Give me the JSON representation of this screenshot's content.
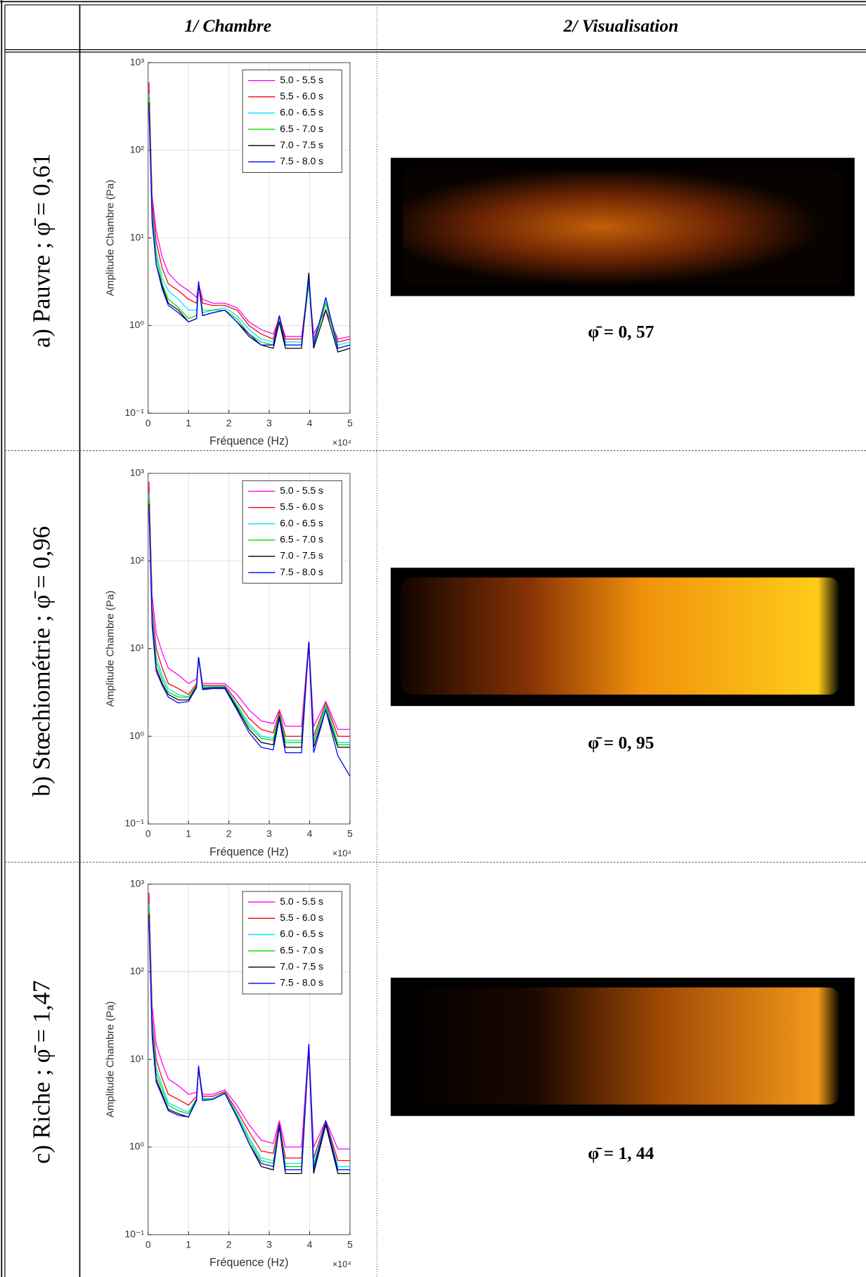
{
  "table": {
    "headers": [
      "1/ Chambre",
      "2/ Visualisation"
    ],
    "rows": [
      {
        "label": "a) Pauvre ; φ̄ = 0,61",
        "caption": "φ̄ = 0, 57",
        "chart": {
          "type": "line",
          "ylabel": "Amplitude Chambre (Pa)",
          "xlabel": "Fréquence (Hz)",
          "x_multiplier": "×10⁴",
          "xlim": [
            0,
            5
          ],
          "ylim": [
            0.1,
            1000
          ],
          "log_y": true,
          "grid": true,
          "legend": "upper right",
          "xticks": [
            0,
            1,
            2,
            3,
            4,
            5
          ],
          "yticks": [
            {
              "value": 0.1,
              "label": "10⁻¹"
            },
            {
              "value": 1,
              "label": "10⁰"
            },
            {
              "value": 10,
              "label": "10¹"
            },
            {
              "value": 100,
              "label": "10²"
            },
            {
              "value": 1000,
              "label": "10³"
            }
          ],
          "x": [
            0.02,
            0.1,
            0.2,
            0.35,
            0.5,
            0.75,
            1.0,
            1.2,
            1.25,
            1.35,
            1.6,
            1.9,
            2.2,
            2.5,
            2.8,
            3.1,
            3.25,
            3.4,
            3.8,
            3.98,
            4.1,
            4.4,
            4.7,
            5.0
          ],
          "series": [
            {
              "name": "5.0 - 5.5 s",
              "color": "#ff00ff",
              "values": [
                500,
                30,
                12,
                6,
                4,
                3,
                2.5,
                2.1,
                3,
                2,
                1.8,
                1.8,
                1.6,
                1.1,
                0.9,
                0.8,
                1.2,
                0.75,
                0.75,
                3,
                0.8,
                1.5,
                0.7,
                0.75
              ]
            },
            {
              "name": "5.5 - 6.0 s",
              "color": "#ff0000",
              "values": [
                600,
                25,
                9,
                4.5,
                3,
                2.5,
                2,
                1.8,
                3,
                1.8,
                1.7,
                1.7,
                1.5,
                1.0,
                0.8,
                0.7,
                1.3,
                0.7,
                0.7,
                3.5,
                0.7,
                1.8,
                0.65,
                0.7
              ]
            },
            {
              "name": "6.0 - 6.5 s",
              "color": "#00e5ff",
              "values": [
                450,
                20,
                7,
                3.5,
                2.5,
                2,
                1.5,
                1.5,
                3,
                1.5,
                1.5,
                1.6,
                1.3,
                0.9,
                0.7,
                0.65,
                1.2,
                0.65,
                0.65,
                3,
                0.65,
                2,
                0.6,
                0.65
              ]
            },
            {
              "name": "6.5 - 7.0 s",
              "color": "#00dd00",
              "values": [
                400,
                18,
                6,
                3,
                2,
                1.6,
                1.2,
                1.3,
                3,
                1.4,
                1.5,
                1.5,
                1.2,
                0.8,
                0.65,
                0.6,
                1.1,
                0.6,
                0.6,
                3,
                0.6,
                1.8,
                0.55,
                0.6
              ]
            },
            {
              "name": "7.0 - 7.5 s",
              "color": "#000000",
              "values": [
                350,
                16,
                5,
                2.8,
                1.8,
                1.5,
                1.1,
                1.2,
                3,
                1.3,
                1.4,
                1.5,
                1.1,
                0.75,
                0.6,
                0.55,
                1.1,
                0.55,
                0.55,
                4,
                0.55,
                1.5,
                0.5,
                0.55
              ]
            },
            {
              "name": "7.5 - 8.0 s",
              "color": "#0000ff",
              "values": [
                300,
                15,
                5,
                2.6,
                1.7,
                1.4,
                1.1,
                1.2,
                3.2,
                1.3,
                1.4,
                1.5,
                1.1,
                0.8,
                0.6,
                0.6,
                1.3,
                0.6,
                0.6,
                3.5,
                0.6,
                2.1,
                0.55,
                0.6
              ]
            }
          ]
        }
      },
      {
        "label": "b) Stœchiométrie ; φ̄ = 0,96",
        "caption": "φ̄ = 0, 95",
        "chart": {
          "type": "line",
          "ylabel": "Amplitude Chambre (Pa)",
          "xlabel": "Fréquence (Hz)",
          "x_multiplier": "×10⁴",
          "xlim": [
            0,
            5
          ],
          "ylim": [
            0.1,
            1000
          ],
          "log_y": true,
          "grid": true,
          "legend": "upper right",
          "xticks": [
            0,
            1,
            2,
            3,
            4,
            5
          ],
          "yticks": [
            {
              "value": 0.1,
              "label": "10⁻¹"
            },
            {
              "value": 1,
              "label": "10⁰"
            },
            {
              "value": 10,
              "label": "10¹"
            },
            {
              "value": 100,
              "label": "10²"
            },
            {
              "value": 1000,
              "label": "10³"
            }
          ],
          "x": [
            0.02,
            0.1,
            0.2,
            0.35,
            0.5,
            0.75,
            1.0,
            1.2,
            1.25,
            1.35,
            1.6,
            1.9,
            2.2,
            2.5,
            2.8,
            3.1,
            3.25,
            3.4,
            3.8,
            3.98,
            4.1,
            4.4,
            4.7,
            5.0
          ],
          "series": [
            {
              "name": "5.0 - 5.5 s",
              "color": "#ff00ff",
              "values": [
                700,
                40,
                15,
                9,
                6,
                5,
                4,
                4.5,
                8,
                4,
                4,
                4,
                3,
                2,
                1.5,
                1.4,
                2,
                1.3,
                1.3,
                12,
                1.3,
                2.5,
                1.2,
                1.2
              ]
            },
            {
              "name": "5.5 - 6.0 s",
              "color": "#ff0000",
              "values": [
                800,
                30,
                10,
                6,
                4,
                3.5,
                3,
                4,
                8,
                3.8,
                3.8,
                3.8,
                2.5,
                1.6,
                1.2,
                1.1,
                1.9,
                1,
                1,
                12,
                1,
                2.4,
                1,
                1
              ]
            },
            {
              "name": "6.0 - 6.5 s",
              "color": "#00e5ff",
              "values": [
                600,
                25,
                8,
                5,
                3.5,
                3,
                2.8,
                3.8,
                8,
                3.7,
                3.7,
                3.7,
                2.3,
                1.4,
                1,
                0.95,
                1.8,
                0.9,
                0.9,
                11,
                0.9,
                2.3,
                0.85,
                0.85
              ]
            },
            {
              "name": "6.5 - 7.0 s",
              "color": "#00dd00",
              "values": [
                500,
                22,
                7,
                4.5,
                3.2,
                2.8,
                2.8,
                3.8,
                8,
                3.6,
                3.6,
                3.6,
                2.2,
                1.3,
                0.95,
                0.9,
                1.8,
                0.85,
                0.85,
                11,
                0.85,
                2.2,
                0.8,
                0.8
              ]
            },
            {
              "name": "7.0 - 7.5 s",
              "color": "#000000",
              "values": [
                450,
                20,
                6,
                4,
                3,
                2.6,
                2.6,
                3.7,
                8,
                3.5,
                3.6,
                3.6,
                2.1,
                1.2,
                0.85,
                0.8,
                1.7,
                0.75,
                0.75,
                12,
                0.75,
                2,
                0.75,
                0.75
              ]
            },
            {
              "name": "7.5 - 8.0 s",
              "color": "#0000ff",
              "values": [
                400,
                18,
                5.5,
                3.8,
                2.8,
                2.4,
                2.5,
                3.6,
                8,
                3.4,
                3.5,
                3.5,
                2,
                1.1,
                0.75,
                0.7,
                1.6,
                0.65,
                0.65,
                12,
                0.65,
                2,
                0.6,
                0.35
              ]
            }
          ]
        }
      },
      {
        "label": "c) Riche ; φ̄ = 1,47",
        "caption": "φ̄ = 1, 44",
        "chart": {
          "type": "line",
          "ylabel": "Amplitude Chambre (Pa)",
          "xlabel": "Fréquence (Hz)",
          "x_multiplier": "×10⁴",
          "xlim": [
            0,
            5
          ],
          "ylim": [
            0.1,
            1000
          ],
          "log_y": true,
          "grid": true,
          "legend": "upper right",
          "xticks": [
            0,
            1,
            2,
            3,
            4,
            5
          ],
          "yticks": [
            {
              "value": 0.1,
              "label": "10⁻¹"
            },
            {
              "value": 1,
              "label": "10⁰"
            },
            {
              "value": 10,
              "label": "10¹"
            },
            {
              "value": 100,
              "label": "10²"
            },
            {
              "value": 1000,
              "label": "10³"
            }
          ],
          "x": [
            0.02,
            0.1,
            0.2,
            0.35,
            0.5,
            0.75,
            1.0,
            1.2,
            1.25,
            1.35,
            1.6,
            1.9,
            2.2,
            2.5,
            2.8,
            3.1,
            3.25,
            3.4,
            3.8,
            3.98,
            4.1,
            4.4,
            4.7,
            5.0
          ],
          "series": [
            {
              "name": "5.0 - 5.5 s",
              "color": "#ff00ff",
              "values": [
                700,
                40,
                15,
                9,
                6,
                5,
                4,
                4.2,
                8,
                4,
                4,
                4.5,
                3,
                1.8,
                1.2,
                1.1,
                2,
                1,
                1,
                15,
                1,
                2,
                0.95,
                0.95
              ]
            },
            {
              "name": "5.5 - 6.0 s",
              "color": "#ff0000",
              "values": [
                800,
                30,
                10,
                6,
                4,
                3.5,
                3,
                3.8,
                8,
                3.8,
                3.8,
                4.3,
                2.6,
                1.5,
                0.9,
                0.85,
                1.9,
                0.75,
                0.75,
                14,
                0.75,
                2,
                0.7,
                0.7
              ]
            },
            {
              "name": "6.0 - 6.5 s",
              "color": "#00e5ff",
              "values": [
                600,
                25,
                8,
                5,
                3.2,
                2.8,
                2.5,
                3.6,
                8,
                3.6,
                3.6,
                4.2,
                2.4,
                1.3,
                0.75,
                0.7,
                1.8,
                0.65,
                0.65,
                14,
                0.65,
                2,
                0.6,
                0.6
              ]
            },
            {
              "name": "6.5 - 7.0 s",
              "color": "#00dd00",
              "values": [
                500,
                22,
                7,
                4.5,
                3,
                2.6,
                2.4,
                3.5,
                8,
                3.5,
                3.5,
                4.2,
                2.3,
                1.2,
                0.7,
                0.65,
                1.8,
                0.6,
                0.6,
                13,
                0.6,
                1.9,
                0.55,
                0.55
              ]
            },
            {
              "name": "7.0 - 7.5 s",
              "color": "#000000",
              "values": [
                450,
                20,
                6,
                4,
                2.7,
                2.4,
                2.2,
                3.5,
                8,
                3.4,
                3.5,
                4.1,
                2.2,
                1.1,
                0.6,
                0.55,
                1.7,
                0.5,
                0.5,
                14,
                0.5,
                1.8,
                0.5,
                0.5
              ]
            },
            {
              "name": "7.5 - 8.0 s",
              "color": "#0000ff",
              "values": [
                400,
                18,
                5.5,
                3.8,
                2.6,
                2.3,
                2.2,
                3.4,
                8.5,
                3.4,
                3.5,
                4.1,
                2.2,
                1.1,
                0.65,
                0.6,
                1.8,
                0.55,
                0.55,
                15,
                0.55,
                2,
                0.55,
                0.55
              ]
            }
          ]
        }
      }
    ]
  }
}
